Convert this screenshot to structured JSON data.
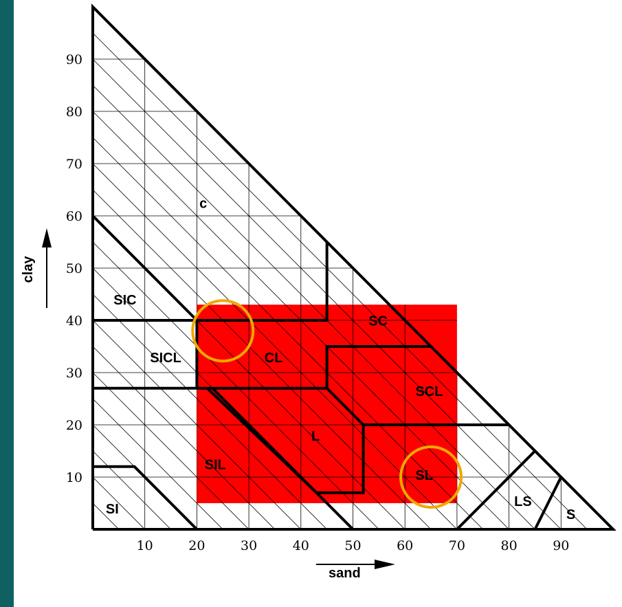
{
  "axes": {
    "x_label": "sand",
    "y_label": "clay",
    "x_ticks": [
      "10",
      "20",
      "30",
      "40",
      "50",
      "60",
      "70",
      "80",
      "90"
    ],
    "y_ticks": [
      "10",
      "20",
      "30",
      "40",
      "50",
      "60",
      "70",
      "80",
      "90"
    ]
  },
  "regions": [
    {
      "key": "C",
      "text": "c"
    },
    {
      "key": "SIC",
      "text": "SIC"
    },
    {
      "key": "SICL",
      "text": "SICL"
    },
    {
      "key": "CL",
      "text": "CL"
    },
    {
      "key": "SC",
      "text": "SC"
    },
    {
      "key": "SCL",
      "text": "SCL"
    },
    {
      "key": "L",
      "text": "L"
    },
    {
      "key": "SIL",
      "text": "SIL"
    },
    {
      "key": "SL",
      "text": "SL"
    },
    {
      "key": "SI",
      "text": "SI"
    },
    {
      "key": "LS",
      "text": "LS"
    },
    {
      "key": "S",
      "text": "S"
    }
  ],
  "highlight": {
    "color": "#ff0000",
    "sand_range": [
      20,
      70
    ],
    "clay_range": [
      5,
      43
    ]
  },
  "markers": [
    {
      "sand": 25,
      "clay": 38,
      "color": "#f0a800"
    },
    {
      "sand": 65,
      "clay": 10,
      "color": "#f0a800"
    }
  ],
  "colors": {
    "background": "#0f6161",
    "panel": "#ffffff"
  }
}
